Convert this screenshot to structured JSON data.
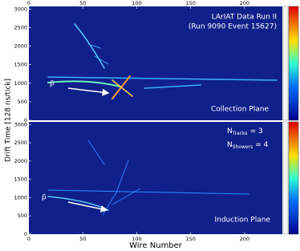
{
  "chart_data": [
    {
      "type": "event-display",
      "ylabel": "Drift Time [128 ns/tick]",
      "xlim": [
        0,
        235
      ],
      "xticks": [
        0,
        50,
        100,
        150,
        200
      ],
      "ylim": [
        0,
        3072
      ],
      "yticks": [
        0,
        500,
        1000,
        1500,
        2000,
        2500,
        3000
      ],
      "annotations": [
        "LArIAT Data Run II",
        "(Run 9090 Event 15627)",
        "Collection Plane",
        "p̄"
      ]
    },
    {
      "type": "event-display",
      "xlabel": "Wire Number",
      "xlim": [
        0,
        235
      ],
      "xticks": [
        0,
        50,
        100,
        150,
        200
      ],
      "ylim": [
        0,
        3072
      ],
      "yticks": [
        0,
        500,
        1000,
        1500,
        2000,
        2500,
        3000
      ],
      "annotations": [
        "Induction Plane",
        "p̄"
      ],
      "counts": [
        {
          "symbol": "N",
          "subscript": "Tracks",
          "text": "= 3"
        },
        {
          "symbol": "N",
          "subscript": "Showers",
          "text": "= 4"
        }
      ]
    }
  ]
}
